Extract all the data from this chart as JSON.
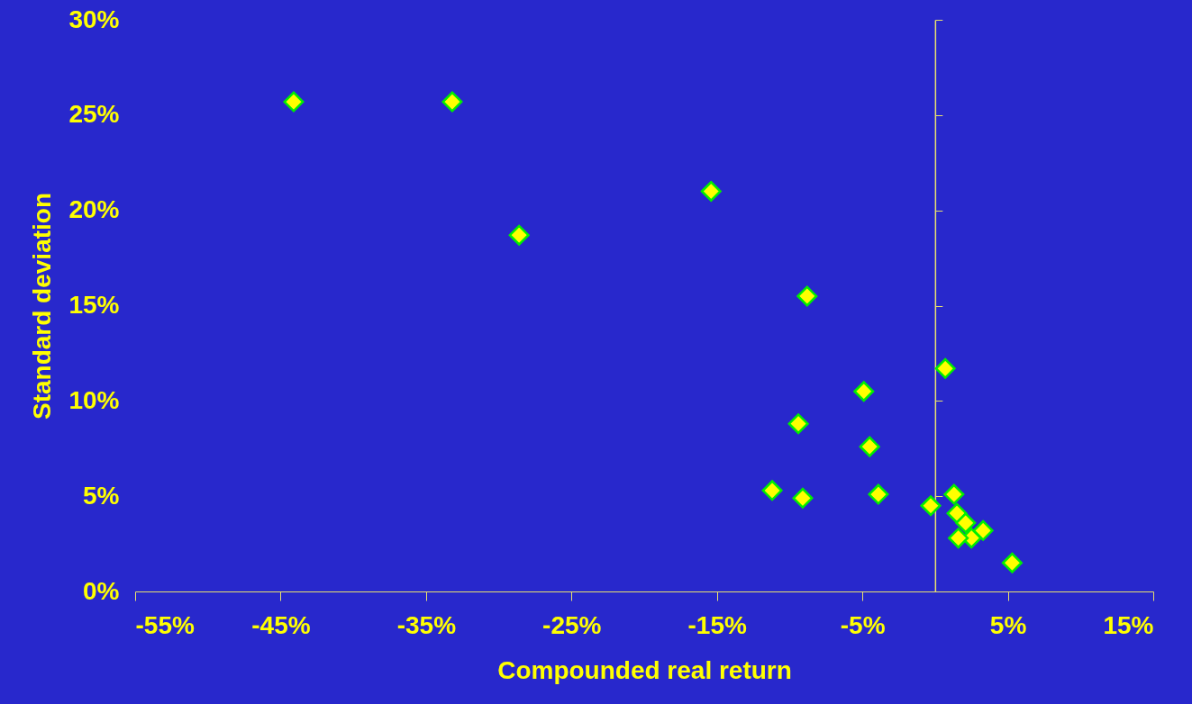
{
  "chart_data": {
    "type": "scatter",
    "xlabel": "Compounded real return",
    "ylabel": "Standard deviation",
    "marker": "diamond",
    "grid": false,
    "ref_lines": [
      {
        "axis": "x",
        "value": 0,
        "color": "#e8e070"
      }
    ],
    "xlim": [
      -55,
      15
    ],
    "ylim": [
      0,
      30
    ],
    "xticks": [
      {
        "value": -55,
        "label": "-55%"
      },
      {
        "value": -45,
        "label": "-45%"
      },
      {
        "value": -35,
        "label": "-35%"
      },
      {
        "value": -25,
        "label": "-25%"
      },
      {
        "value": -15,
        "label": "-15%"
      },
      {
        "value": -5,
        "label": "-5%"
      },
      {
        "value": 5,
        "label": "5%"
      },
      {
        "value": 15,
        "label": "15%"
      }
    ],
    "yticks": [
      {
        "value": 0,
        "label": "0%"
      },
      {
        "value": 5,
        "label": "5%"
      },
      {
        "value": 10,
        "label": "10%"
      },
      {
        "value": 15,
        "label": "15%"
      },
      {
        "value": 20,
        "label": "20%"
      },
      {
        "value": 25,
        "label": "25%"
      },
      {
        "value": 30,
        "label": "30%"
      }
    ],
    "series": [
      {
        "color": "#ffff00",
        "x": [
          -44.1,
          -33.2,
          -28.6,
          -15.4,
          -8.8,
          0.7,
          -4.9,
          -9.4,
          -4.5,
          -11.2,
          -9.1,
          -3.9,
          -0.3,
          1.3,
          1.5,
          2.1,
          3.3,
          2.5,
          1.6,
          5.3
        ],
        "values": [
          25.7,
          25.7,
          18.7,
          21.0,
          15.5,
          11.7,
          10.5,
          8.8,
          7.6,
          5.3,
          4.9,
          5.1,
          4.5,
          5.1,
          4.1,
          3.6,
          3.2,
          2.8,
          2.8,
          1.5
        ]
      }
    ]
  }
}
